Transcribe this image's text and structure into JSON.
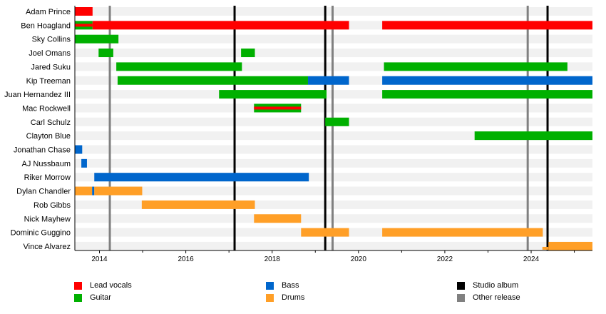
{
  "chart_data": {
    "type": "timeline",
    "xlim": [
      2013.43,
      2025.42
    ],
    "x_ticks": [
      2014,
      2016,
      2018,
      2020,
      2022,
      2024
    ],
    "minor_ticks": [
      2015,
      2017,
      2019,
      2021,
      2023,
      2025
    ],
    "roles": {
      "vocals": {
        "label": "Lead vocals",
        "color": "#ff0000"
      },
      "guitar": {
        "label": "Guitar",
        "color": "#00b000"
      },
      "bass": {
        "label": "Bass",
        "color": "#0066cc"
      },
      "drums": {
        "label": "Drums",
        "color": "#ff9f27"
      }
    },
    "release_types": {
      "studio": {
        "label": "Studio album",
        "color": "#000000"
      },
      "other": {
        "label": "Other release",
        "color": "#808080"
      }
    },
    "releases": [
      {
        "type": "other",
        "date": 2014.24
      },
      {
        "type": "studio",
        "date": 2017.13
      },
      {
        "type": "studio",
        "date": 2019.23
      },
      {
        "type": "other",
        "date": 2019.4
      },
      {
        "type": "other",
        "date": 2023.92
      },
      {
        "type": "studio",
        "date": 2024.38
      }
    ],
    "members": [
      {
        "name": "Adam Prince",
        "spans": [
          {
            "role": "vocals",
            "start": 2013.43,
            "end": 2013.84
          }
        ]
      },
      {
        "name": "Ben Hoagland",
        "spans": [
          {
            "role": "guitar",
            "start": 2013.43,
            "end": 2013.84,
            "stripe": "vocals"
          },
          {
            "role": "vocals",
            "start": 2013.84,
            "end": 2019.78
          },
          {
            "role": "vocals",
            "start": 2020.55,
            "end": 2025.42
          }
        ]
      },
      {
        "name": "Sky Collins",
        "spans": [
          {
            "role": "guitar",
            "start": 2013.43,
            "end": 2014.44
          }
        ]
      },
      {
        "name": "Joel Omans",
        "spans": [
          {
            "role": "guitar",
            "start": 2013.98,
            "end": 2014.32
          },
          {
            "role": "guitar",
            "start": 2017.28,
            "end": 2017.6
          }
        ]
      },
      {
        "name": "Jared Suku",
        "spans": [
          {
            "role": "guitar",
            "start": 2014.39,
            "end": 2017.3
          },
          {
            "role": "guitar",
            "start": 2020.59,
            "end": 2024.84
          }
        ]
      },
      {
        "name": "Kip Treeman",
        "spans": [
          {
            "role": "guitar",
            "start": 2014.42,
            "end": 2018.83
          },
          {
            "role": "bass",
            "start": 2018.83,
            "end": 2019.78
          },
          {
            "role": "bass",
            "start": 2020.55,
            "end": 2025.42
          }
        ]
      },
      {
        "name": "Juan Hernandez III",
        "spans": [
          {
            "role": "guitar",
            "start": 2016.77,
            "end": 2019.26
          },
          {
            "role": "guitar",
            "start": 2020.55,
            "end": 2025.42
          }
        ]
      },
      {
        "name": "Mac Rockwell",
        "spans": [
          {
            "role": "guitar",
            "start": 2017.58,
            "end": 2018.67,
            "stripe": "vocals"
          }
        ]
      },
      {
        "name": "Carl Schulz",
        "spans": [
          {
            "role": "guitar",
            "start": 2019.23,
            "end": 2019.78
          }
        ]
      },
      {
        "name": "Clayton Blue",
        "spans": [
          {
            "role": "guitar",
            "start": 2022.69,
            "end": 2025.42
          }
        ]
      },
      {
        "name": "Jonathan Chase",
        "spans": [
          {
            "role": "bass",
            "start": 2013.43,
            "end": 2013.6
          }
        ]
      },
      {
        "name": "AJ Nussbaum",
        "spans": [
          {
            "role": "bass",
            "start": 2013.58,
            "end": 2013.71
          }
        ]
      },
      {
        "name": "Riker Morrow",
        "spans": [
          {
            "role": "bass",
            "start": 2013.88,
            "end": 2018.85
          }
        ]
      },
      {
        "name": "Dylan Chandler",
        "spans": [
          {
            "role": "drums",
            "start": 2013.43,
            "end": 2013.83
          },
          {
            "role": "bass",
            "start": 2013.83,
            "end": 2013.88
          },
          {
            "role": "drums",
            "start": 2013.88,
            "end": 2014.99
          }
        ]
      },
      {
        "name": "Rob Gibbs",
        "spans": [
          {
            "role": "drums",
            "start": 2014.98,
            "end": 2017.6
          }
        ]
      },
      {
        "name": "Nick Mayhew",
        "spans": [
          {
            "role": "drums",
            "start": 2017.58,
            "end": 2018.67
          }
        ]
      },
      {
        "name": "Dominic Guggino",
        "spans": [
          {
            "role": "drums",
            "start": 2018.67,
            "end": 2019.78
          },
          {
            "role": "drums",
            "start": 2020.55,
            "end": 2024.27
          }
        ]
      },
      {
        "name": "Vince Alvarez",
        "spans": [
          {
            "role": "drums",
            "start": 2024.26,
            "end": 2024.4,
            "thin": true
          },
          {
            "role": "drums",
            "start": 2024.4,
            "end": 2025.42
          }
        ]
      }
    ]
  }
}
